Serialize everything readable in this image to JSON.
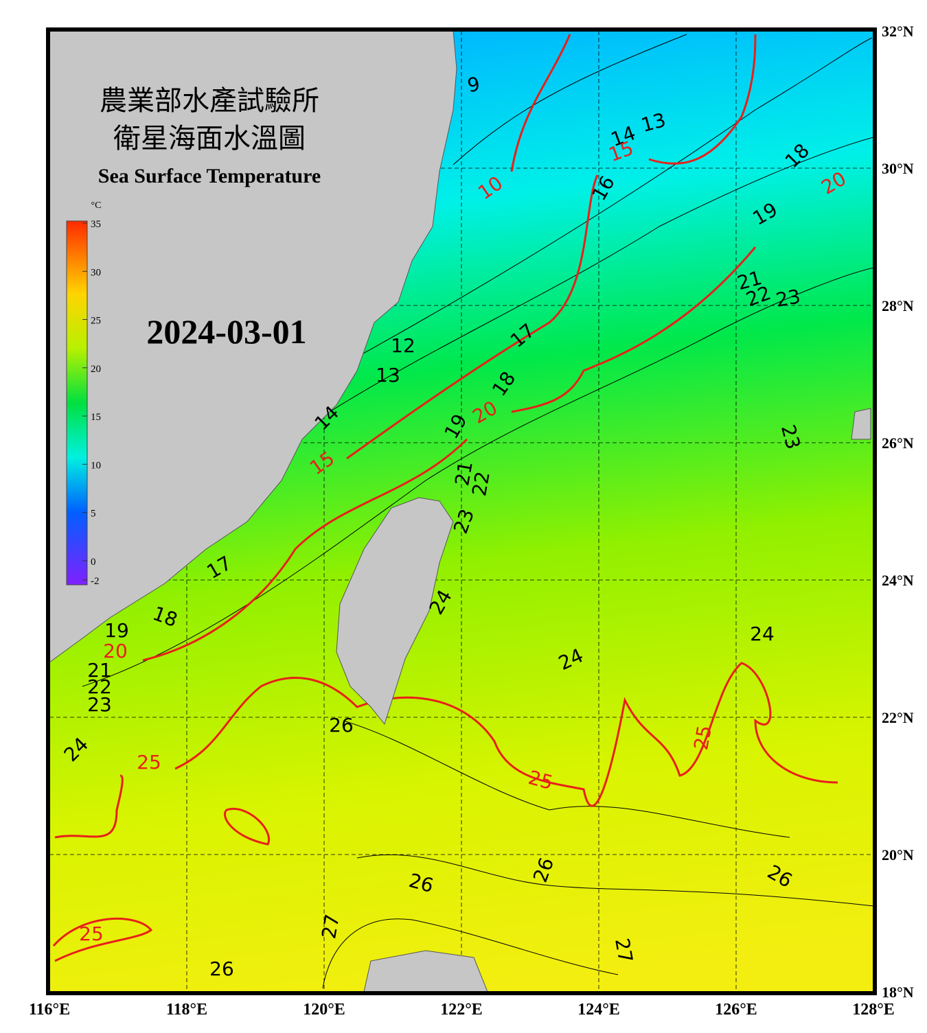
{
  "header": {
    "title_zh_1": "農業部水產試驗所",
    "title_zh_2": "衛星海面水溫圖",
    "title_en": "Sea Surface Temperature",
    "date": "2024-03-01"
  },
  "colorbar": {
    "unit": "°C",
    "ticks": [
      35,
      30,
      25,
      20,
      15,
      10,
      5,
      0,
      -2
    ]
  },
  "map": {
    "lat_ticks": [
      {
        "value": 32,
        "label": "32°N"
      },
      {
        "value": 30,
        "label": "30°N"
      },
      {
        "value": 28,
        "label": "28°N"
      },
      {
        "value": 26,
        "label": "26°N"
      },
      {
        "value": 24,
        "label": "24°N"
      },
      {
        "value": 22,
        "label": "22°N"
      },
      {
        "value": 20,
        "label": "20°N"
      },
      {
        "value": 18,
        "label": "18°N"
      }
    ],
    "lon_ticks": [
      {
        "value": 116,
        "label": "116°E"
      },
      {
        "value": 118,
        "label": "118°E"
      },
      {
        "value": 120,
        "label": "120°E"
      },
      {
        "value": 122,
        "label": "122°E"
      },
      {
        "value": 124,
        "label": "124°E"
      },
      {
        "value": 126,
        "label": "126°E"
      },
      {
        "value": 128,
        "label": "128°E"
      }
    ],
    "major_contour_color": "#e8201a",
    "contour_labels": [
      9,
      13,
      14,
      15,
      18,
      20,
      16,
      10,
      19,
      21,
      22,
      23,
      17,
      12,
      13,
      18,
      20,
      19,
      23,
      14,
      15,
      21,
      22,
      23,
      17,
      24,
      18,
      19,
      20,
      24,
      24,
      21,
      22,
      23,
      26,
      25,
      24,
      25,
      25,
      26,
      26,
      26,
      27,
      25,
      27,
      26
    ]
  }
}
